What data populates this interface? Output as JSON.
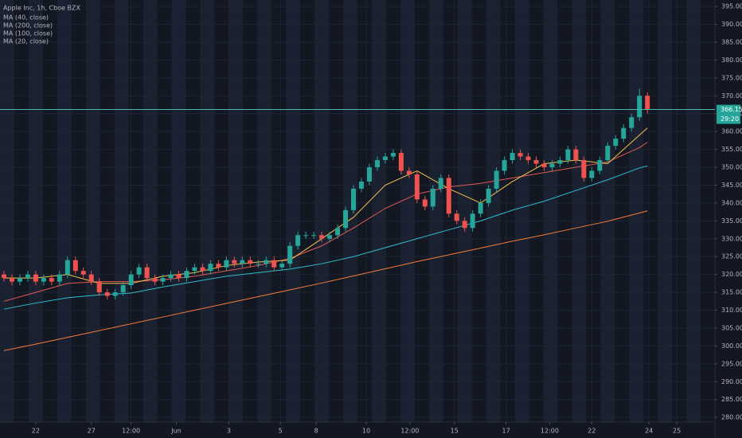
{
  "chart_data": {
    "type": "candlestick",
    "title": "Apple Inc, 1h, Cboe BZX",
    "x": [
      0,
      1,
      2,
      3,
      4,
      5,
      6,
      7,
      8,
      9,
      10,
      11,
      12,
      13,
      14,
      15,
      16,
      17,
      18,
      19,
      20,
      21,
      22,
      23,
      24,
      25,
      26,
      27,
      28,
      29,
      30,
      31,
      32,
      33,
      34,
      35,
      36,
      37,
      38,
      39,
      40,
      41,
      42,
      43,
      44,
      45,
      46,
      47,
      48,
      49,
      50,
      51,
      52,
      53,
      54,
      55,
      56,
      57,
      58,
      59,
      60,
      61,
      62,
      63,
      64,
      65,
      66,
      67,
      68,
      69,
      70,
      71,
      72,
      73,
      74,
      75,
      76,
      77,
      78,
      79,
      80,
      81
    ],
    "open": [
      320,
      319,
      318,
      319,
      320,
      318,
      319,
      318,
      320,
      324,
      321,
      320,
      318,
      315,
      314,
      315,
      317,
      320,
      322,
      319,
      318,
      319,
      320,
      319,
      321,
      322,
      321,
      323,
      322,
      324,
      323,
      324,
      323,
      323,
      324,
      322,
      323,
      328,
      331,
      331,
      331,
      330,
      331,
      333,
      338,
      344,
      346,
      350,
      352,
      353,
      354,
      349,
      348,
      341,
      339,
      344,
      347,
      337,
      335,
      333,
      337,
      340,
      344,
      349,
      352,
      354,
      353,
      352,
      351,
      350,
      351,
      352,
      355,
      352,
      347,
      349,
      352,
      356,
      358,
      361,
      364,
      370
    ],
    "high": [
      321,
      320,
      320,
      321,
      321,
      320,
      320,
      321,
      325,
      325,
      322,
      321,
      319,
      316,
      316,
      318,
      321,
      323,
      323,
      320,
      320,
      321,
      321,
      322,
      323,
      323,
      324,
      324,
      325,
      325,
      325,
      325,
      324,
      325,
      325,
      324,
      329,
      332,
      332,
      332,
      332,
      332,
      334,
      339,
      345,
      347,
      351,
      353,
      354,
      355,
      355,
      350,
      349,
      342,
      345,
      348,
      348,
      338,
      336,
      338,
      341,
      345,
      350,
      353,
      355,
      355,
      354,
      353,
      352,
      352,
      353,
      356,
      356,
      353,
      350,
      353,
      357,
      359,
      362,
      365,
      372,
      371
    ],
    "low": [
      318,
      317,
      317,
      318,
      317,
      317,
      317,
      317,
      319,
      320,
      319,
      317,
      314,
      313,
      313,
      314,
      316,
      319,
      318,
      317,
      317,
      318,
      318,
      318,
      320,
      320,
      320,
      321,
      321,
      322,
      322,
      322,
      322,
      322,
      321,
      321,
      322,
      327,
      330,
      330,
      329,
      329,
      330,
      332,
      337,
      343,
      345,
      349,
      351,
      352,
      348,
      347,
      340,
      338,
      338,
      343,
      336,
      334,
      332,
      332,
      336,
      339,
      343,
      348,
      351,
      352,
      351,
      350,
      349,
      349,
      350,
      351,
      351,
      346,
      346,
      348,
      351,
      355,
      357,
      360,
      363,
      365
    ],
    "close": [
      319,
      318,
      319,
      320,
      318,
      319,
      318,
      320,
      324,
      321,
      320,
      318,
      315,
      314,
      315,
      317,
      320,
      322,
      319,
      318,
      319,
      320,
      319,
      321,
      322,
      321,
      323,
      322,
      324,
      323,
      324,
      323,
      323,
      324,
      322,
      323,
      328,
      331,
      331,
      331,
      330,
      331,
      333,
      338,
      344,
      346,
      350,
      352,
      353,
      354,
      349,
      348,
      341,
      339,
      344,
      347,
      337,
      335,
      333,
      337,
      340,
      344,
      349,
      352,
      354,
      353,
      352,
      351,
      350,
      351,
      352,
      355,
      352,
      347,
      349,
      352,
      356,
      358,
      361,
      364,
      370,
      366.15
    ],
    "up_color": "#26a69a",
    "down_color": "#ef5350",
    "series": [
      {
        "name": "MA (40, close)",
        "color": "#e35a55",
        "x": [
          0,
          4,
          8,
          12,
          16,
          20,
          24,
          28,
          32,
          36,
          40,
          44,
          48,
          52,
          56,
          60,
          64,
          68,
          72,
          76,
          80,
          81
        ],
        "values": [
          312.5,
          315,
          317.5,
          318,
          318,
          318.5,
          319.5,
          321,
          322.5,
          324.5,
          328,
          333,
          338.5,
          342.5,
          344.5,
          345.5,
          347,
          348.5,
          350,
          351.5,
          355.5,
          357
        ]
      },
      {
        "name": "MA (200, close)",
        "color": "#f57c3a",
        "x": [
          0,
          4,
          8,
          12,
          16,
          20,
          24,
          28,
          32,
          36,
          40,
          44,
          48,
          52,
          56,
          60,
          64,
          68,
          72,
          76,
          80,
          81
        ],
        "values": [
          298.7,
          300.5,
          302.4,
          304.3,
          306.2,
          308.1,
          310.0,
          311.9,
          313.8,
          315.7,
          317.6,
          319.6,
          321.6,
          323.6,
          325.5,
          327.4,
          329.3,
          331.1,
          333.0,
          334.9,
          337.2,
          337.8
        ]
      },
      {
        "name": "MA (100, close)",
        "color": "#2fbccc",
        "x": [
          0,
          4,
          8,
          12,
          16,
          20,
          24,
          28,
          32,
          36,
          40,
          44,
          48,
          52,
          56,
          60,
          64,
          68,
          72,
          76,
          80,
          81
        ],
        "values": [
          310.3,
          312,
          313.5,
          314.3,
          314.8,
          316.5,
          318,
          319.5,
          320.5,
          321.5,
          323,
          325,
          327.5,
          330,
          332.5,
          335,
          338,
          340.5,
          343.5,
          346.5,
          349.8,
          350.4
        ]
      },
      {
        "name": "MA (20, close)",
        "color": "#f2c14e",
        "x": [
          0,
          4,
          8,
          12,
          16,
          20,
          24,
          28,
          32,
          36,
          40,
          44,
          48,
          52,
          56,
          60,
          64,
          68,
          72,
          76,
          80,
          81
        ],
        "values": [
          319,
          319,
          320,
          317.5,
          317.5,
          319.5,
          320.5,
          322.5,
          323.5,
          324,
          330,
          336,
          345,
          349,
          344,
          340,
          346,
          351,
          352,
          351,
          359,
          361
        ]
      }
    ],
    "xlim": [
      -0.5,
      89.5
    ],
    "xticks": [
      {
        "value": 4,
        "label": "22"
      },
      {
        "value": 11,
        "label": "27"
      },
      {
        "value": 16,
        "label": "12:00"
      },
      {
        "value": 21.7,
        "label": "Jun"
      },
      {
        "value": 28.3,
        "label": "3"
      },
      {
        "value": 34.8,
        "label": "5"
      },
      {
        "value": 39.3,
        "label": "8"
      },
      {
        "value": 45.6,
        "label": "10"
      },
      {
        "value": 51.1,
        "label": "12:00"
      },
      {
        "value": 56.7,
        "label": "15"
      },
      {
        "value": 63.2,
        "label": "17"
      },
      {
        "value": 68.7,
        "label": "12:00"
      },
      {
        "value": 74,
        "label": "22"
      },
      {
        "value": 81.2,
        "label": "24"
      },
      {
        "value": 84.7,
        "label": "25"
      }
    ],
    "ylim": [
      278.7,
      396.8
    ],
    "yticks": [
      {
        "value": 280,
        "label": "280.00"
      },
      {
        "value": 285,
        "label": "285.00"
      },
      {
        "value": 290,
        "label": "290.00"
      },
      {
        "value": 295,
        "label": "295.00"
      },
      {
        "value": 300,
        "label": "300.00"
      },
      {
        "value": 305,
        "label": "305.00"
      },
      {
        "value": 310,
        "label": "310.00"
      },
      {
        "value": 315,
        "label": "315.00"
      },
      {
        "value": 320,
        "label": "320.00"
      },
      {
        "value": 325,
        "label": "325.00"
      },
      {
        "value": 330,
        "label": "330.00"
      },
      {
        "value": 335,
        "label": "335.00"
      },
      {
        "value": 340,
        "label": "340.00"
      },
      {
        "value": 345,
        "label": "345.00"
      },
      {
        "value": 350,
        "label": "350.00"
      },
      {
        "value": 355,
        "label": "355.00"
      },
      {
        "value": 360,
        "label": "360.00"
      },
      {
        "value": 365,
        "label": "365.00"
      },
      {
        "value": 370,
        "label": "370.00"
      },
      {
        "value": 375,
        "label": "375.00"
      },
      {
        "value": 380,
        "label": "380.00"
      },
      {
        "value": 385,
        "label": "385.00"
      },
      {
        "value": 390,
        "label": "390.00"
      },
      {
        "value": 395,
        "label": "395.00"
      }
    ],
    "grid": true,
    "last_price": 366.15,
    "price_line_color": "#4fb8b0",
    "countdown": "29:20"
  }
}
